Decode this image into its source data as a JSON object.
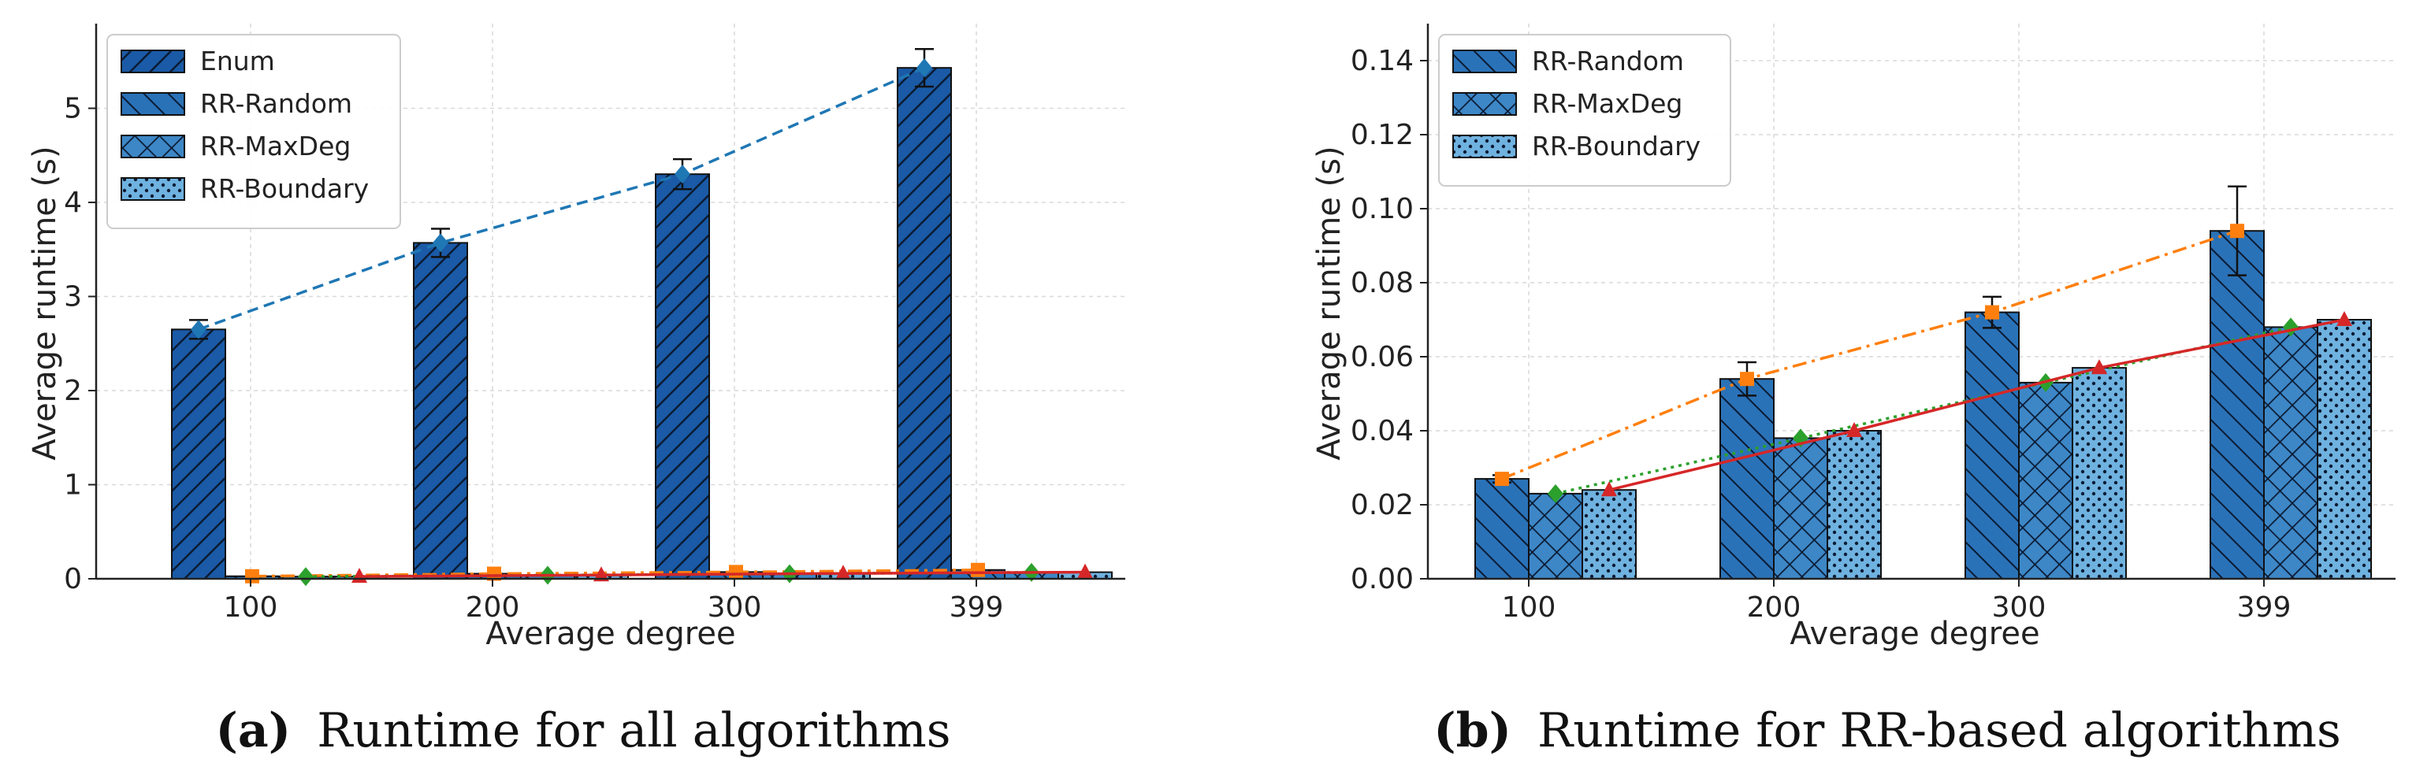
{
  "colors": {
    "enum": "#1a5aa6",
    "rr_random": "#2a72b8",
    "rr_maxdeg": "#3d87c7",
    "rr_boundary": "#6fb2e0",
    "trend_enum": "#1f77b4",
    "trend_random": "#ff7f0e",
    "trend_maxdeg": "#2ca02c",
    "trend_boundary": "#d62728",
    "grid": "#d9d9d9"
  },
  "chart_data": [
    {
      "type": "bar",
      "caption_letter": "(a)",
      "caption_text": "Runtime for all algorithms",
      "categories": [
        "100",
        "200",
        "300",
        "399"
      ],
      "xlabel": "Average degree",
      "ylabel": "Average runtime (s)",
      "ylim": [
        0,
        5.9
      ],
      "yticks": [
        "0",
        "1",
        "2",
        "3",
        "4",
        "5"
      ],
      "legend_position": "top-left",
      "grid": true,
      "series": [
        {
          "name": "Enum",
          "hatch": "dense-forward",
          "values": [
            2.65,
            3.57,
            4.3,
            5.43
          ],
          "err": [
            0.1,
            0.15,
            0.16,
            0.2
          ],
          "trend": "dashed"
        },
        {
          "name": "RR-Random",
          "hatch": "backward",
          "values": [
            0.027,
            0.054,
            0.072,
            0.094
          ],
          "err": [
            0,
            0,
            0,
            0
          ],
          "trend": "dashdot"
        },
        {
          "name": "RR-MaxDeg",
          "hatch": "crosshatch",
          "values": [
            0.023,
            0.038,
            0.053,
            0.068
          ],
          "err": [
            0,
            0,
            0,
            0
          ],
          "trend": "dotted"
        },
        {
          "name": "RR-Boundary",
          "hatch": "dots",
          "values": [
            0.024,
            0.04,
            0.057,
            0.07
          ],
          "err": [
            0,
            0,
            0,
            0
          ],
          "trend": "solid"
        }
      ]
    },
    {
      "type": "bar",
      "caption_letter": "(b)",
      "caption_text": "Runtime for RR-based algorithms",
      "categories": [
        "100",
        "200",
        "300",
        "399"
      ],
      "xlabel": "Average degree",
      "ylabel": "Average runtime (s)",
      "ylim": [
        0,
        0.15
      ],
      "yticks": [
        "0.00",
        "0.02",
        "0.04",
        "0.06",
        "0.08",
        "0.10",
        "0.12",
        "0.14"
      ],
      "legend_position": "top-left",
      "grid": true,
      "series": [
        {
          "name": "RR-Random",
          "hatch": "backward",
          "values": [
            0.027,
            0.054,
            0.072,
            0.094
          ],
          "err": [
            0.001,
            0.0045,
            0.0042,
            0.012
          ],
          "trend": "dashdot"
        },
        {
          "name": "RR-MaxDeg",
          "hatch": "crosshatch",
          "values": [
            0.023,
            0.038,
            0.053,
            0.068
          ],
          "err": [
            0,
            0,
            0,
            0
          ],
          "trend": "dotted"
        },
        {
          "name": "RR-Boundary",
          "hatch": "dots",
          "values": [
            0.024,
            0.04,
            0.057,
            0.07
          ],
          "err": [
            0,
            0,
            0,
            0
          ],
          "trend": "solid"
        }
      ]
    }
  ]
}
